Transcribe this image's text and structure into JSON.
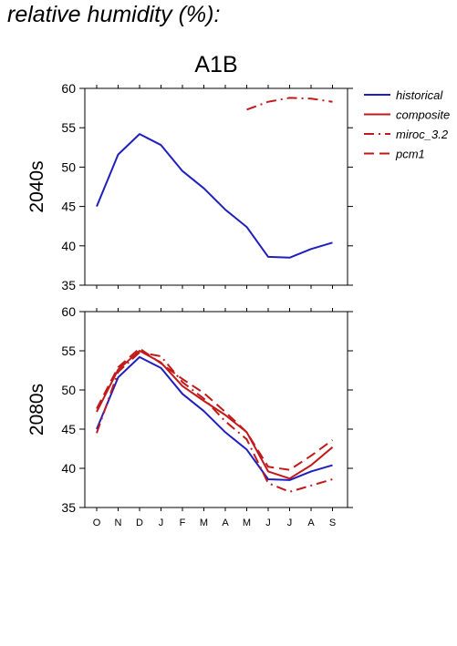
{
  "page_title": "relative humidity (%):",
  "colors": {
    "historical": "#1f1fbf",
    "scenario": "#c01a1a",
    "axis": "#000000"
  },
  "chart_data": {
    "type": "line",
    "title": "A1B",
    "x": [
      "O",
      "N",
      "D",
      "J",
      "F",
      "M",
      "A",
      "M",
      "J",
      "J",
      "A",
      "S"
    ],
    "ylim": [
      35,
      60
    ],
    "yticks": [
      35,
      40,
      45,
      50,
      55,
      60
    ],
    "legend": {
      "placement": "right",
      "entries": [
        {
          "label": "historical",
          "color": "#1f1fbf",
          "dash": "solid"
        },
        {
          "label": "composite",
          "color": "#c01a1a",
          "dash": "solid"
        },
        {
          "label": "miroc_3.2",
          "color": "#c01a1a",
          "dash": "dashdot"
        },
        {
          "label": "pcm1",
          "color": "#c01a1a",
          "dash": "dashed"
        }
      ]
    },
    "panels": [
      {
        "ylabel": "2040s",
        "series": [
          {
            "name": "historical",
            "values": [
              45.0,
              51.6,
              54.2,
              52.8,
              49.5,
              47.3,
              44.6,
              42.4,
              38.6,
              38.5,
              39.6,
              40.4
            ]
          },
          {
            "name": "miroc_3.2",
            "values": [
              null,
              null,
              null,
              null,
              null,
              null,
              null,
              57.3,
              58.3,
              58.8,
              58.7,
              58.3
            ]
          }
        ]
      },
      {
        "ylabel": "2080s",
        "series": [
          {
            "name": "historical",
            "values": [
              45.0,
              51.6,
              54.2,
              52.8,
              49.5,
              47.3,
              44.6,
              42.4,
              38.6,
              38.5,
              39.6,
              40.4
            ]
          },
          {
            "name": "composite",
            "values": [
              47.2,
              52.6,
              55.0,
              53.5,
              50.5,
              48.6,
              46.8,
              44.6,
              39.6,
              38.7,
              40.4,
              42.7
            ]
          },
          {
            "name": "miroc_3.2",
            "values": [
              44.5,
              52.3,
              54.8,
              54.3,
              51.0,
              48.9,
              46.0,
              43.7,
              38.1,
              37.0,
              37.8,
              38.6
            ]
          },
          {
            "name": "pcm1",
            "values": [
              47.6,
              52.9,
              55.3,
              53.4,
              51.4,
              49.6,
              47.2,
              44.6,
              40.2,
              39.8,
              41.6,
              43.6
            ]
          }
        ]
      }
    ]
  }
}
